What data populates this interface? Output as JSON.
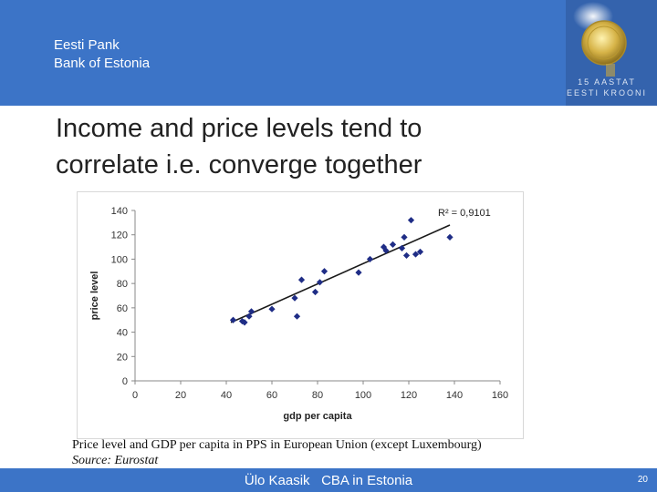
{
  "header": {
    "bank_et": "Eesti Pank",
    "bank_en": "Bank of Estonia",
    "logo_text_1": "15 AASTAT",
    "logo_text_2": "EESTI KROONI"
  },
  "slide": {
    "title_line1": "Income and price levels tend to",
    "title_line2": "correlate i.e. converge together"
  },
  "caption": {
    "line1": "Price level and GDP per capita in PPS in European Union (except Luxembourg)",
    "source": "Source: Eurostat"
  },
  "footer": {
    "author": "Ülo Kaasik",
    "event": "CBA in Estonia",
    "page": "20"
  },
  "colors": {
    "header_bg": "#3c74c7",
    "marker": "#1f2d86"
  },
  "chart_data": {
    "type": "scatter",
    "xlabel": "gdp per capita",
    "ylabel": "price level",
    "xlim": [
      0,
      160
    ],
    "ylim": [
      0,
      140
    ],
    "xticks": [
      0,
      20,
      40,
      60,
      80,
      100,
      120,
      140,
      160
    ],
    "yticks": [
      0,
      20,
      40,
      60,
      80,
      100,
      120,
      140
    ],
    "grid": false,
    "annotation": "R² = 0,9101",
    "trendline": {
      "x": [
        42,
        138
      ],
      "y": [
        48,
        128
      ]
    },
    "points": [
      {
        "x": 43,
        "y": 50
      },
      {
        "x": 47,
        "y": 49
      },
      {
        "x": 48,
        "y": 48
      },
      {
        "x": 50,
        "y": 53
      },
      {
        "x": 51,
        "y": 57
      },
      {
        "x": 60,
        "y": 59
      },
      {
        "x": 70,
        "y": 68
      },
      {
        "x": 71,
        "y": 53
      },
      {
        "x": 73,
        "y": 83
      },
      {
        "x": 79,
        "y": 73
      },
      {
        "x": 81,
        "y": 81
      },
      {
        "x": 83,
        "y": 90
      },
      {
        "x": 98,
        "y": 89
      },
      {
        "x": 103,
        "y": 100
      },
      {
        "x": 109,
        "y": 110
      },
      {
        "x": 110,
        "y": 107
      },
      {
        "x": 113,
        "y": 112
      },
      {
        "x": 117,
        "y": 109
      },
      {
        "x": 118,
        "y": 118
      },
      {
        "x": 119,
        "y": 103
      },
      {
        "x": 121,
        "y": 132
      },
      {
        "x": 123,
        "y": 104
      },
      {
        "x": 125,
        "y": 106
      },
      {
        "x": 138,
        "y": 118
      }
    ]
  }
}
